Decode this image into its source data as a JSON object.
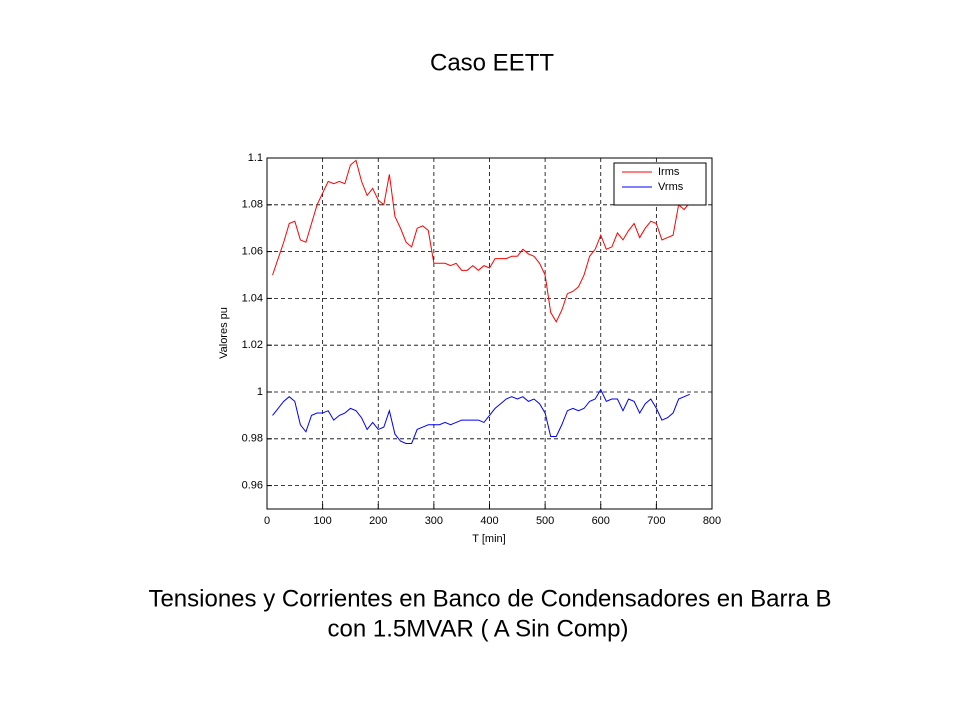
{
  "slide": {
    "title": "Caso EETT",
    "caption": [
      "Tensiones y Corrientes en Banco de Condensadores en Barra B",
      "con 1.5MVAR ( A Sin Comp)"
    ]
  },
  "chart_data": {
    "type": "line",
    "xlabel": "T [min]",
    "ylabel": "Valores pu",
    "x": [
      10,
      20,
      30,
      40,
      50,
      60,
      70,
      80,
      90,
      100,
      110,
      120,
      130,
      140,
      150,
      160,
      170,
      180,
      190,
      200,
      210,
      220,
      230,
      240,
      250,
      260,
      270,
      280,
      290,
      300,
      310,
      320,
      330,
      340,
      350,
      360,
      370,
      380,
      390,
      400,
      410,
      420,
      430,
      440,
      450,
      460,
      470,
      480,
      490,
      500,
      510,
      520,
      530,
      540,
      550,
      560,
      570,
      580,
      590,
      600,
      610,
      620,
      630,
      640,
      650,
      660,
      670,
      680,
      690,
      700,
      710,
      720,
      730,
      740,
      750,
      760
    ],
    "series": [
      {
        "name": "Irms",
        "color": "#ff0000",
        "values": [
          1.05,
          1.057,
          1.064,
          1.072,
          1.073,
          1.065,
          1.064,
          1.072,
          1.08,
          1.085,
          1.09,
          1.089,
          1.09,
          1.089,
          1.097,
          1.099,
          1.09,
          1.084,
          1.087,
          1.082,
          1.08,
          1.093,
          1.075,
          1.07,
          1.064,
          1.062,
          1.07,
          1.071,
          1.069,
          1.055,
          1.055,
          1.055,
          1.054,
          1.055,
          1.052,
          1.052,
          1.054,
          1.052,
          1.054,
          1.053,
          1.057,
          1.057,
          1.057,
          1.058,
          1.058,
          1.061,
          1.059,
          1.058,
          1.055,
          1.05,
          1.034,
          1.03,
          1.035,
          1.042,
          1.043,
          1.045,
          1.05,
          1.058,
          1.061,
          1.067,
          1.061,
          1.062,
          1.068,
          1.065,
          1.069,
          1.072,
          1.066,
          1.07,
          1.073,
          1.072,
          1.065,
          1.066,
          1.067,
          1.08,
          1.078,
          1.081
        ]
      },
      {
        "name": "Vrms",
        "color": "#0000ff",
        "values": [
          0.99,
          0.993,
          0.996,
          0.998,
          0.996,
          0.986,
          0.983,
          0.99,
          0.991,
          0.991,
          0.992,
          0.988,
          0.99,
          0.991,
          0.993,
          0.992,
          0.989,
          0.984,
          0.987,
          0.984,
          0.985,
          0.992,
          0.982,
          0.979,
          0.978,
          0.978,
          0.984,
          0.985,
          0.986,
          0.986,
          0.986,
          0.987,
          0.986,
          0.987,
          0.988,
          0.988,
          0.988,
          0.988,
          0.987,
          0.99,
          0.993,
          0.995,
          0.997,
          0.998,
          0.997,
          0.998,
          0.996,
          0.997,
          0.995,
          0.991,
          0.981,
          0.981,
          0.986,
          0.992,
          0.993,
          0.992,
          0.993,
          0.996,
          0.997,
          1.001,
          0.996,
          0.997,
          0.997,
          0.992,
          0.997,
          0.996,
          0.991,
          0.995,
          0.997,
          0.993,
          0.988,
          0.989,
          0.991,
          0.997,
          0.998,
          0.999
        ]
      }
    ],
    "xlim": [
      0,
      800
    ],
    "xticks": [
      0,
      100,
      200,
      300,
      400,
      500,
      600,
      700,
      800
    ],
    "ylim": [
      0.95,
      1.1
    ],
    "yticks": [
      0.96,
      0.98,
      1,
      1.02,
      1.04,
      1.06,
      1.08,
      1.1
    ],
    "grid": true,
    "legend": "upper-right"
  }
}
